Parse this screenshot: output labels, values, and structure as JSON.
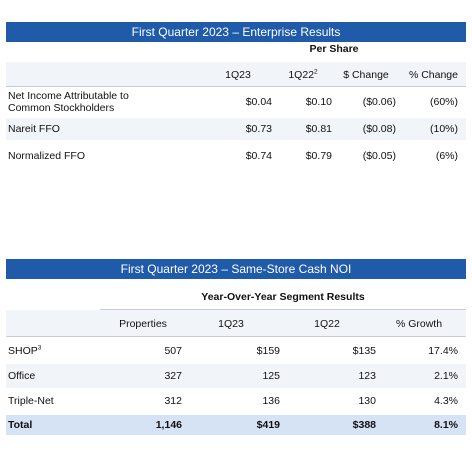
{
  "enterprise": {
    "title": "First Quarter 2023 – Enterprise Results",
    "group_header": "Per Share",
    "columns": {
      "c1q23": "1Q23",
      "c1q22": "1Q22",
      "c1q22_note": "2",
      "dollar_change": "$ Change",
      "pct_change": "% Change"
    },
    "rows": [
      {
        "label_line1": "Net Income Attributable to",
        "label_line2": "Common Stockholders",
        "q23": "$0.04",
        "q22": "$0.10",
        "dchg": "($0.06)",
        "pchg": "(60%)"
      },
      {
        "label": "Nareit FFO",
        "q23": "$0.73",
        "q22": "$0.81",
        "dchg": "($0.08)",
        "pchg": "(10%)"
      },
      {
        "label": "Normalized FFO",
        "q23": "$0.74",
        "q22": "$0.79",
        "dchg": "($0.05)",
        "pchg": "(6%)"
      }
    ]
  },
  "noi": {
    "title": "First Quarter 2023 – Same-Store Cash NOI",
    "group_header": "Year-Over-Year Segment Results",
    "columns": {
      "properties": "Properties",
      "c1q23": "1Q23",
      "c1q22": "1Q22",
      "growth": "% Growth"
    },
    "rows": [
      {
        "label": "SHOP",
        "note": "3",
        "properties": "507",
        "q23": "$159",
        "q22": "$135",
        "growth": "17.4%"
      },
      {
        "label": "Office",
        "properties": "327",
        "q23": "125",
        "q22": "123",
        "growth": "2.1%"
      },
      {
        "label": "Triple-Net",
        "properties": "312",
        "q23": "136",
        "q22": "130",
        "growth": "4.3%"
      }
    ],
    "total": {
      "label": "Total",
      "properties": "1,146",
      "q23": "$419",
      "q22": "$388",
      "growth": "8.1%"
    }
  },
  "colors": {
    "banner": "#1f5ba9",
    "total_band": "#d6e3f5",
    "row_shade": "#f1f4f9"
  }
}
